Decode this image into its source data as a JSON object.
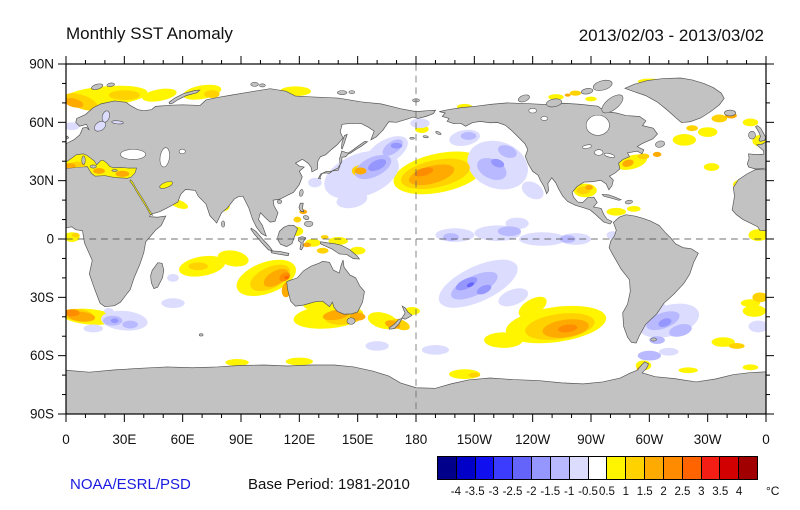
{
  "header": {
    "title": "Monthly SST Anomaly",
    "date_range": "2013/02/03 - 2013/03/02"
  },
  "footer": {
    "credit": "NOAA/ESRL/PSD",
    "base_period": "Base Period: 1981-2010"
  },
  "axes": {
    "lat_tick_labels": [
      "90N",
      "60N",
      "30N",
      "0",
      "30S",
      "60S",
      "90S"
    ],
    "lat_tick_values": [
      90,
      60,
      30,
      0,
      -30,
      -60,
      -90
    ],
    "lon_tick_labels": [
      "0",
      "30E",
      "60E",
      "90E",
      "120E",
      "150E",
      "180",
      "150W",
      "120W",
      "90W",
      "60W",
      "30W",
      "0"
    ],
    "lon_tick_values": [
      0,
      30,
      60,
      90,
      120,
      150,
      180,
      210,
      240,
      270,
      300,
      330,
      360
    ]
  },
  "colorbar": {
    "tick_labels": [
      "-4",
      "-3.5",
      "-3",
      "-2.5",
      "-2",
      "-1.5",
      "-1",
      "-0.5",
      "0.5",
      "1",
      "1.5",
      "2",
      "2.5",
      "3",
      "3.5",
      "4"
    ],
    "unit": "°C"
  },
  "chart_data": {
    "type": "heatmap",
    "title": "Monthly SST Anomaly",
    "date_range": "2013/02/03 - 2013/03/02",
    "base_period": "1981-2010",
    "units": "degC",
    "projection": "equirectangular, longitudes 0-360E (Pacific centered)",
    "lon_range": [
      0,
      360
    ],
    "lat_range": [
      -90,
      90
    ],
    "bin_edges": [
      -4,
      -3.5,
      -3,
      -2.5,
      -2,
      -1.5,
      -1,
      -0.5,
      0.5,
      1,
      1.5,
      2,
      2.5,
      3,
      3.5,
      4
    ],
    "palette": [
      "#00008B",
      "#0000C8",
      "#0F0FF0",
      "#3C3CFF",
      "#6464FA",
      "#9696FF",
      "#B9B9FF",
      "#DCDCFF",
      "#FFFFFF",
      "#FFF500",
      "#FFD200",
      "#FFAA00",
      "#FF8C00",
      "#FF6400",
      "#F51E14",
      "#D20000",
      "#A00000"
    ],
    "land_color": "#C2C2C2",
    "ocean_color": "#FFFFFF",
    "coast_color": "#555555",
    "reference_lines": {
      "equator_lat": 0,
      "dateline_lon": 180,
      "style": "dashed"
    },
    "regions": [
      [
        20,
        73.5,
        22,
        5,
        -5,
        0.75
      ],
      [
        48,
        74,
        9,
        3,
        -10,
        0.75
      ],
      [
        70,
        75.5,
        10,
        3.5,
        -10,
        0.75
      ],
      [
        118,
        76,
        8,
        2.5,
        0,
        0.75
      ],
      [
        183,
        56.5,
        3.5,
        2,
        0,
        0.75
      ],
      [
        153,
        35.5,
        7,
        4.5,
        0,
        0.75
      ],
      [
        192,
        34,
        24,
        10,
        -12,
        0.75
      ],
      [
        267,
        25,
        6,
        3.5,
        0,
        0.75
      ],
      [
        291,
        39.5,
        8,
        3.5,
        -15,
        0.75
      ],
      [
        318,
        51,
        6,
        3,
        0,
        0.75
      ],
      [
        330,
        55,
        5,
        2.5,
        0,
        0.75
      ],
      [
        352,
        60,
        4,
        2,
        0,
        0.75
      ],
      [
        357,
        50.5,
        4,
        3,
        0,
        0.75
      ],
      [
        332,
        37,
        4,
        2,
        0,
        0.75
      ],
      [
        347,
        28,
        4,
        2.5,
        0,
        0.75
      ],
      [
        356,
        2,
        5,
        3,
        0,
        0.75
      ],
      [
        3,
        1,
        4,
        2.5,
        0,
        0.75
      ],
      [
        283,
        14,
        5,
        2,
        0,
        0.75
      ],
      [
        292,
        15.5,
        3.5,
        1.5,
        0,
        0.75
      ],
      [
        70,
        -14,
        12,
        5,
        -10,
        0.75
      ],
      [
        86,
        -10,
        8,
        4,
        10,
        0.75
      ],
      [
        103,
        -20,
        16,
        8,
        -20,
        0.75
      ],
      [
        130,
        -34,
        8,
        3,
        0,
        0.75
      ],
      [
        135,
        -40,
        18,
        6,
        -5,
        0.75
      ],
      [
        163,
        -42,
        8,
        4,
        15,
        0.75
      ],
      [
        178,
        -37,
        4,
        2,
        0,
        0.75
      ],
      [
        252,
        -44,
        26,
        9,
        -8,
        0.75
      ],
      [
        240,
        -35,
        8,
        4,
        -30,
        0.75
      ],
      [
        225,
        -52,
        10,
        4,
        0,
        0.75
      ],
      [
        12,
        -40,
        14,
        4,
        5,
        0.75
      ],
      [
        354,
        -37,
        6,
        3,
        0,
        0.75
      ],
      [
        352,
        -33,
        5,
        2,
        0,
        0.75
      ],
      [
        338,
        -53,
        6,
        2.5,
        0,
        0.75
      ],
      [
        88,
        -63.5,
        6,
        1.8,
        0,
        0.75
      ],
      [
        120,
        -63,
        7,
        2,
        0,
        0.75
      ],
      [
        205,
        -69.5,
        8,
        2.5,
        0,
        0.75
      ],
      [
        297,
        -65,
        4,
        2.5,
        0,
        0.75
      ],
      [
        320,
        -67.5,
        5,
        1.5,
        0,
        0.75
      ],
      [
        352,
        -66,
        4,
        1.5,
        0,
        0.75
      ],
      [
        58,
        18,
        5,
        2,
        20,
        0.75
      ],
      [
        82,
        16,
        2.5,
        1.5,
        -30,
        0.75
      ],
      [
        118,
        4,
        4,
        2.5,
        0,
        0.75
      ],
      [
        127,
        -2,
        4,
        2,
        0,
        0.75
      ],
      [
        140,
        -1,
        5,
        2,
        0,
        0.75
      ],
      [
        150,
        -6,
        4,
        2,
        0,
        0.75
      ],
      [
        252,
        73,
        4,
        1.5,
        0,
        0.75
      ],
      [
        270,
        72,
        3,
        1.2,
        0,
        0.75
      ],
      [
        300,
        81,
        6,
        1.5,
        0,
        0.75
      ],
      [
        205,
        68,
        4,
        1.5,
        0,
        0.75
      ],
      [
        3,
        58,
        4,
        2,
        0,
        -0.75
      ],
      [
        37,
        65,
        2.5,
        1.3,
        0,
        -0.75
      ],
      [
        152,
        33,
        20,
        11,
        -20,
        -0.75
      ],
      [
        165,
        45,
        12,
        6,
        -30,
        -0.75
      ],
      [
        147,
        20,
        8,
        4,
        -10,
        -0.75
      ],
      [
        128,
        29,
        3.5,
        2.5,
        0,
        -0.75
      ],
      [
        222,
        38,
        16,
        12,
        20,
        -0.75
      ],
      [
        205,
        52,
        8,
        4,
        -10,
        -0.75
      ],
      [
        240,
        25,
        6,
        4,
        30,
        -0.75
      ],
      [
        182,
        59.5,
        5,
        2.5,
        0,
        -0.75
      ],
      [
        200,
        2,
        10,
        3.5,
        0,
        -0.75
      ],
      [
        222,
        3,
        12,
        4,
        0,
        -0.75
      ],
      [
        245,
        0,
        12,
        3.5,
        0,
        -0.75
      ],
      [
        262,
        0,
        8,
        3,
        0,
        -0.75
      ],
      [
        232,
        8,
        6,
        3,
        0,
        -0.75
      ],
      [
        281,
        2,
        3,
        2,
        0,
        -0.75
      ],
      [
        212,
        -23,
        22,
        9,
        -25,
        -0.75
      ],
      [
        230,
        -30,
        8,
        4,
        -20,
        -0.75
      ],
      [
        310,
        -42,
        16,
        8,
        -15,
        -0.75
      ],
      [
        303,
        -34,
        5,
        2.5,
        0,
        -0.75
      ],
      [
        356,
        -45,
        5,
        3,
        0,
        -0.75
      ],
      [
        30,
        -42,
        12,
        5,
        5,
        -0.75
      ],
      [
        14,
        -46,
        5,
        2,
        0,
        -0.75
      ],
      [
        22,
        -37,
        2.5,
        1.5,
        0,
        -0.75
      ],
      [
        55,
        -33,
        6,
        2.5,
        0,
        -0.75
      ],
      [
        55,
        -20,
        3,
        2,
        0,
        -0.75
      ],
      [
        160,
        -55,
        6,
        2.5,
        0,
        -0.75
      ],
      [
        190,
        -57,
        7,
        2.5,
        0,
        -0.75
      ],
      [
        310,
        -58,
        5,
        2,
        0,
        -0.75
      ],
      [
        332,
        71,
        5,
        2.5,
        0,
        -0.75
      ],
      [
        8,
        70.5,
        9,
        3.5,
        20,
        1.25
      ],
      [
        30,
        74,
        8,
        2.5,
        0,
        1.25
      ],
      [
        75,
        74.5,
        4,
        2,
        0,
        1.25
      ],
      [
        190,
        33.5,
        18,
        7,
        -12,
        1.25
      ],
      [
        152,
        35,
        5,
        3,
        0,
        1.25
      ],
      [
        266,
        25,
        3.5,
        2,
        0,
        1.25
      ],
      [
        297,
        42.5,
        3,
        1.5,
        0,
        1.25
      ],
      [
        322,
        57,
        3,
        1.5,
        0,
        1.25
      ],
      [
        336,
        62,
        4,
        2,
        0,
        1.25
      ],
      [
        350,
        30,
        2,
        1.2,
        0,
        1.25
      ],
      [
        68,
        -14,
        5,
        2,
        0,
        1.25
      ],
      [
        105,
        -20,
        11,
        5.5,
        -25,
        1.25
      ],
      [
        143,
        -40,
        10,
        4,
        -5,
        1.25
      ],
      [
        172,
        -44,
        5,
        2.5,
        20,
        1.25
      ],
      [
        254,
        -45,
        18,
        6.5,
        -8,
        1.25
      ],
      [
        6,
        -39,
        8,
        3,
        5,
        1.25
      ],
      [
        357,
        -30,
        4,
        2.5,
        0,
        1.25
      ],
      [
        345,
        -55,
        4,
        1.5,
        0,
        1.25
      ],
      [
        210,
        -70,
        3,
        1.2,
        0,
        1.25
      ],
      [
        296,
        -66.5,
        2.5,
        1.2,
        0,
        1.25
      ],
      [
        119,
        10,
        2,
        1.5,
        0,
        1.25
      ],
      [
        133,
        1,
        2,
        1,
        0,
        1.25
      ],
      [
        132,
        -6,
        3,
        1.5,
        0,
        1.25
      ],
      [
        262,
        75,
        3,
        1.3,
        0,
        1.25
      ],
      [
        5,
        2,
        2,
        1.2,
        0,
        1.25
      ],
      [
        19,
        59,
        2,
        1,
        0,
        -1.25
      ],
      [
        158,
        37,
        10,
        5,
        -25,
        -1.25
      ],
      [
        168,
        47,
        6,
        3,
        -35,
        -1.25
      ],
      [
        219,
        36,
        8,
        5,
        25,
        -1.25
      ],
      [
        227,
        45,
        5,
        3,
        20,
        -1.25
      ],
      [
        207,
        53,
        4,
        2,
        0,
        -1.25
      ],
      [
        198,
        1,
        4,
        2,
        0,
        -1.25
      ],
      [
        228,
        4,
        6,
        2.5,
        0,
        -1.25
      ],
      [
        258,
        0,
        4,
        2,
        0,
        -1.25
      ],
      [
        210,
        -24,
        13,
        5,
        -25,
        -1.25
      ],
      [
        307,
        -42,
        9,
        4,
        -20,
        -1.25
      ],
      [
        316,
        -47,
        6,
        3,
        -15,
        -1.25
      ],
      [
        304,
        -52,
        4,
        2,
        0,
        -1.25
      ],
      [
        24,
        -42,
        5,
        2.5,
        0,
        -1.25
      ],
      [
        33,
        -44,
        4,
        2,
        0,
        -1.25
      ],
      [
        300,
        -60,
        6,
        2.5,
        0,
        -1.25
      ],
      [
        4,
        70,
        5,
        2.2,
        15,
        1.75
      ],
      [
        188,
        33,
        12,
        4.5,
        -15,
        1.75
      ],
      [
        151.5,
        35,
        3,
        1.8,
        0,
        1.75
      ],
      [
        269,
        26.5,
        2,
        1.3,
        0,
        1.75
      ],
      [
        289,
        39,
        3,
        1.8,
        -15,
        1.75
      ],
      [
        304,
        43.5,
        2.2,
        1.3,
        0,
        1.75
      ],
      [
        342,
        63.5,
        3,
        1.5,
        0,
        1.75
      ],
      [
        108,
        -20,
        7,
        3.5,
        -30,
        1.75
      ],
      [
        113.5,
        -26,
        2.5,
        4,
        10,
        1.75
      ],
      [
        139,
        -39,
        7,
        2.5,
        -10,
        1.75
      ],
      [
        150,
        -40,
        4,
        2,
        0,
        1.75
      ],
      [
        168,
        -44,
        4,
        2,
        15,
        1.75
      ],
      [
        257,
        -46,
        12,
        4.5,
        -8,
        1.75
      ],
      [
        8,
        -40,
        7,
        2.5,
        5,
        1.75
      ],
      [
        295,
        -67,
        1.5,
        0.8,
        0,
        1.75
      ],
      [
        258,
        74,
        1.5,
        0.8,
        0,
        1.75
      ],
      [
        124,
        -3,
        2,
        1.2,
        0,
        1.75
      ],
      [
        122,
        14,
        2,
        1.2,
        0,
        1.75
      ],
      [
        160,
        38,
        5,
        2.5,
        -25,
        -1.75
      ],
      [
        170,
        48,
        3,
        1.5,
        0,
        -1.75
      ],
      [
        222,
        39,
        3.5,
        2,
        20,
        -1.75
      ],
      [
        206,
        -23,
        6,
        2.5,
        -25,
        -1.75
      ],
      [
        215,
        -26,
        4,
        2,
        -25,
        -1.75
      ],
      [
        308,
        -43,
        3.5,
        2,
        -20,
        -1.75
      ],
      [
        25,
        -42,
        2,
        1.2,
        0,
        -1.75
      ],
      [
        184,
        34.5,
        5,
        2,
        -15,
        2.25
      ],
      [
        112.5,
        -19.5,
        3,
        2,
        -30,
        2.25
      ],
      [
        258,
        -46,
        5,
        2,
        -8,
        2.25
      ],
      [
        3,
        -38,
        4,
        1.8,
        0,
        2.25
      ],
      [
        208,
        -23.5,
        2,
        1,
        -25,
        -2.25
      ],
      [
        113.5,
        -19.8,
        1.2,
        0.8,
        0,
        2.75
      ]
    ]
  }
}
